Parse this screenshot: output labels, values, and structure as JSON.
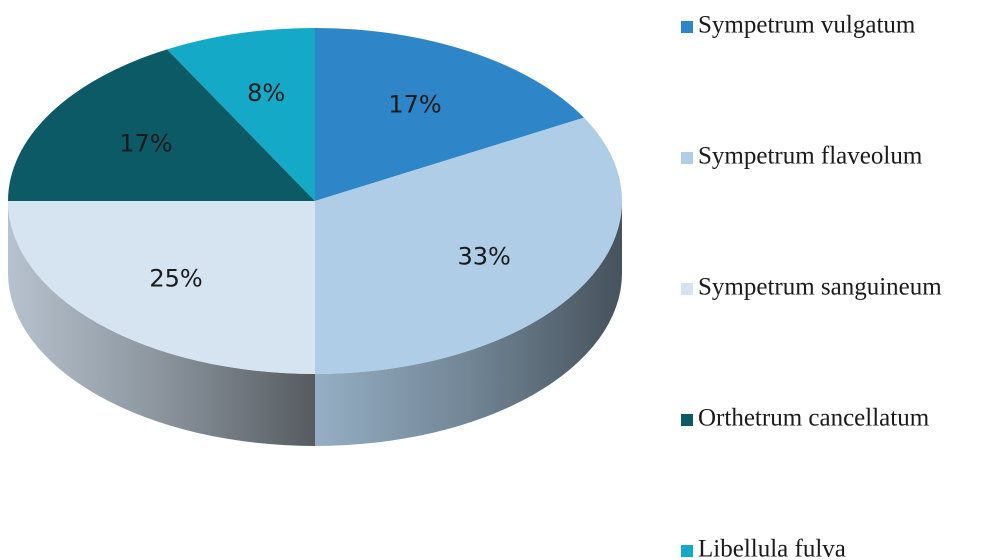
{
  "chart_data": {
    "type": "pie",
    "categories": [
      "Sympetrum vulgatum",
      "Sympetrum flaveolum",
      "Sympetrum sanguineum",
      "Orthetrum cancellatum",
      "Libellula fulva"
    ],
    "values": [
      17,
      33,
      25,
      17,
      8
    ],
    "value_labels": [
      "17%",
      "33%",
      "25%",
      "17%",
      "8%"
    ],
    "colors": [
      "#2e86c8",
      "#afcde6",
      "#d6e4f2",
      "#0c5a66",
      "#14a9c6"
    ],
    "legend": "right"
  }
}
